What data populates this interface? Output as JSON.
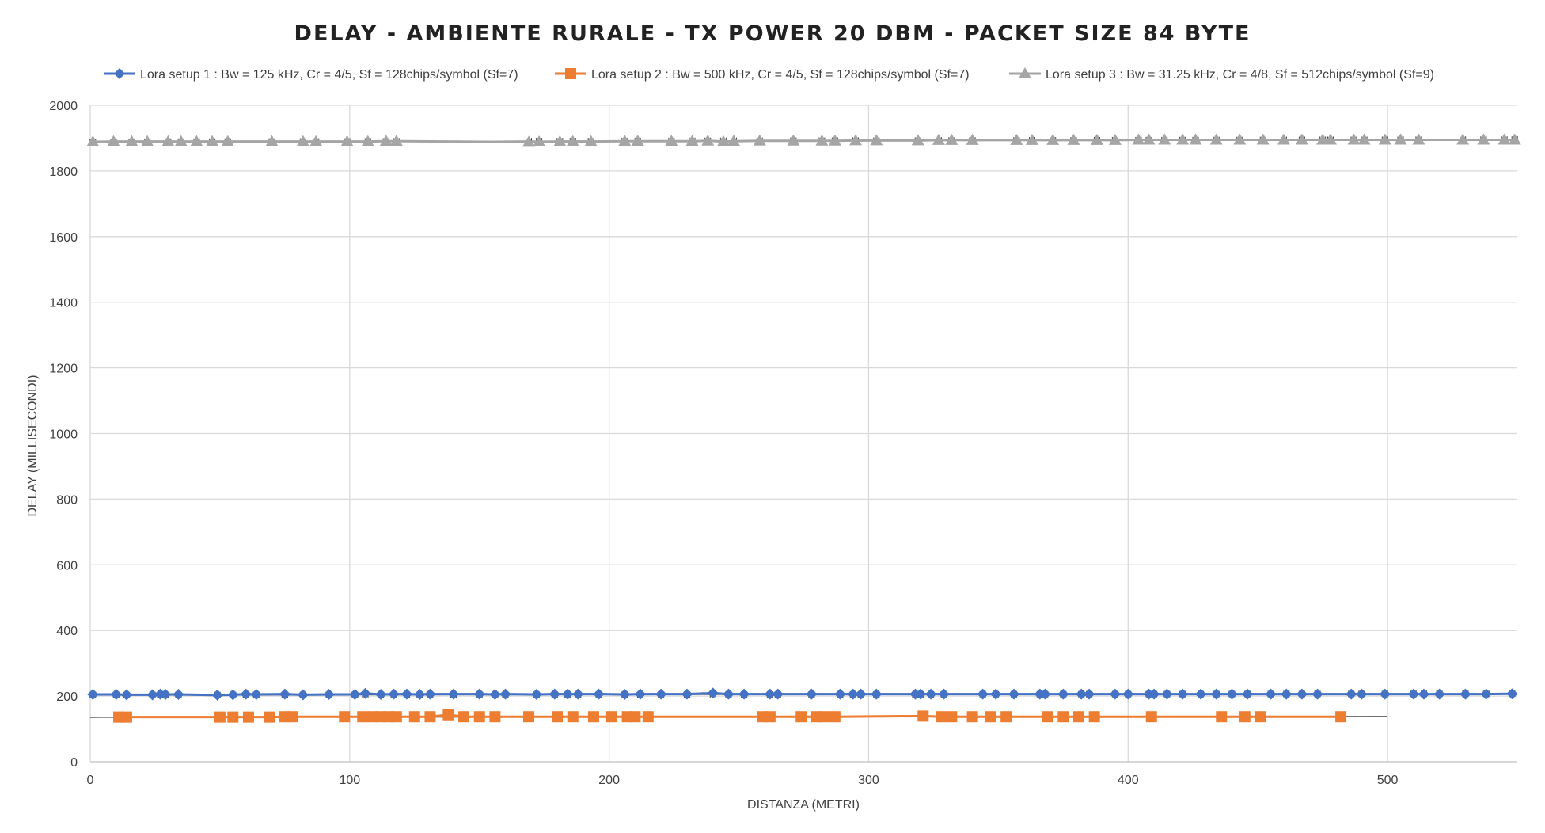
{
  "chart_data": {
    "type": "line",
    "title": "DELAY - AMBIENTE RURALE - TX POWER 20 DBM - PACKET SIZE 84 BYTE",
    "xlabel": "DISTANZA (METRI)",
    "ylabel": "DELAY (MILLISECONDI)",
    "xlim": [
      0,
      550
    ],
    "ylim": [
      0,
      2000
    ],
    "x_ticks": [
      0,
      100,
      200,
      300,
      400,
      500
    ],
    "y_ticks": [
      0,
      200,
      400,
      600,
      800,
      1000,
      1200,
      1400,
      1600,
      1800,
      2000
    ],
    "grid": true,
    "legend_position": "top",
    "series": [
      {
        "name": "Lora setup 1 : Bw = 125 kHz, Cr = 4/5, Sf = 128chips/symbol (Sf=7)",
        "color": "#4472c4",
        "marker": "diamond",
        "x": [
          1,
          10,
          14,
          24,
          27,
          29,
          34,
          49,
          55,
          60,
          64,
          75,
          82,
          92,
          102,
          106,
          112,
          117,
          122,
          127,
          131,
          140,
          150,
          156,
          160,
          172,
          179,
          184,
          188,
          196,
          206,
          212,
          220,
          230,
          240,
          246,
          252,
          262,
          265,
          278,
          289,
          294,
          297,
          303,
          318,
          320,
          324,
          329,
          344,
          349,
          356,
          366,
          368,
          375,
          382,
          385,
          395,
          400,
          408,
          410,
          415,
          421,
          428,
          434,
          440,
          446,
          455,
          461,
          467,
          473,
          486,
          490,
          499,
          510,
          514,
          520,
          530,
          538,
          548
        ],
        "y": [
          205,
          205,
          204,
          204,
          206,
          205,
          205,
          203,
          204,
          206,
          205,
          206,
          204,
          205,
          205,
          208,
          205,
          206,
          206,
          205,
          206,
          206,
          206,
          205,
          206,
          205,
          206,
          206,
          206,
          206,
          205,
          206,
          206,
          206,
          209,
          206,
          206,
          206,
          206,
          206,
          206,
          206,
          206,
          206,
          206,
          206,
          206,
          206,
          206,
          206,
          206,
          206,
          206,
          206,
          206,
          206,
          206,
          206,
          206,
          206,
          206,
          206,
          206,
          206,
          206,
          206,
          206,
          206,
          206,
          206,
          206,
          206,
          206,
          206,
          206,
          206,
          206,
          206,
          207
        ]
      },
      {
        "name": "Lora setup 2 : Bw = 500 kHz, Cr = 4/5, Sf = 128chips/symbol (Sf=7)",
        "color": "#ed7d31",
        "marker": "square",
        "x": [
          11,
          14,
          50,
          55,
          61,
          69,
          75,
          78,
          98,
          105,
          109,
          112,
          115,
          118,
          125,
          131,
          138,
          144,
          150,
          156,
          169,
          180,
          186,
          194,
          201,
          207,
          210,
          215,
          259,
          262,
          274,
          280,
          283,
          287,
          321,
          328,
          332,
          340,
          347,
          353,
          369,
          375,
          381,
          387,
          409,
          436,
          445,
          451,
          482
        ],
        "y": [
          136,
          136,
          136,
          136,
          136,
          136,
          137,
          137,
          137,
          137,
          137,
          137,
          137,
          137,
          137,
          137,
          143,
          137,
          137,
          137,
          137,
          137,
          137,
          137,
          137,
          137,
          137,
          137,
          137,
          137,
          137,
          137,
          137,
          137,
          139,
          137,
          137,
          137,
          137,
          137,
          137,
          137,
          137,
          137,
          137,
          137,
          137,
          137,
          137
        ]
      },
      {
        "name": "Lora setup 3 : Bw = 31.25 kHz, Cr = 4/8, Sf = 512chips/symbol (Sf=9)",
        "color": "#a5a5a5",
        "marker": "triangle",
        "x": [
          1,
          9,
          16,
          22,
          30,
          35,
          41,
          47,
          53,
          70,
          82,
          87,
          99,
          107,
          114,
          118,
          169,
          173,
          181,
          186,
          193,
          206,
          211,
          224,
          232,
          238,
          244,
          248,
          258,
          271,
          282,
          287,
          295,
          303,
          319,
          327,
          332,
          340,
          357,
          363,
          371,
          379,
          388,
          395,
          404,
          408,
          414,
          421,
          426,
          434,
          443,
          452,
          460,
          467,
          475,
          478,
          487,
          491,
          499,
          505,
          512,
          529,
          537,
          545,
          549
        ],
        "y": [
          1889,
          1890,
          1890,
          1890,
          1890,
          1890,
          1890,
          1890,
          1890,
          1890,
          1890,
          1890,
          1890,
          1890,
          1891,
          1891,
          1888,
          1889,
          1890,
          1890,
          1890,
          1891,
          1891,
          1891,
          1891,
          1892,
          1890,
          1891,
          1892,
          1892,
          1892,
          1892,
          1893,
          1893,
          1893,
          1894,
          1894,
          1894,
          1894,
          1894,
          1894,
          1894,
          1894,
          1894,
          1895,
          1895,
          1895,
          1895,
          1895,
          1895,
          1895,
          1895,
          1895,
          1895,
          1895,
          1895,
          1895,
          1895,
          1895,
          1895,
          1895,
          1895,
          1895,
          1895,
          1895
        ]
      }
    ],
    "trendlines": [
      {
        "series": 0,
        "x": [
          0,
          550
        ],
        "y": [
          203,
          207
        ],
        "color": "#595959"
      },
      {
        "series": 1,
        "x": [
          0,
          500
        ],
        "y": [
          135,
          138
        ],
        "color": "#595959"
      },
      {
        "series": 2,
        "x": [
          0,
          550
        ],
        "y": [
          1889,
          1896
        ],
        "color": "#595959"
      }
    ]
  }
}
